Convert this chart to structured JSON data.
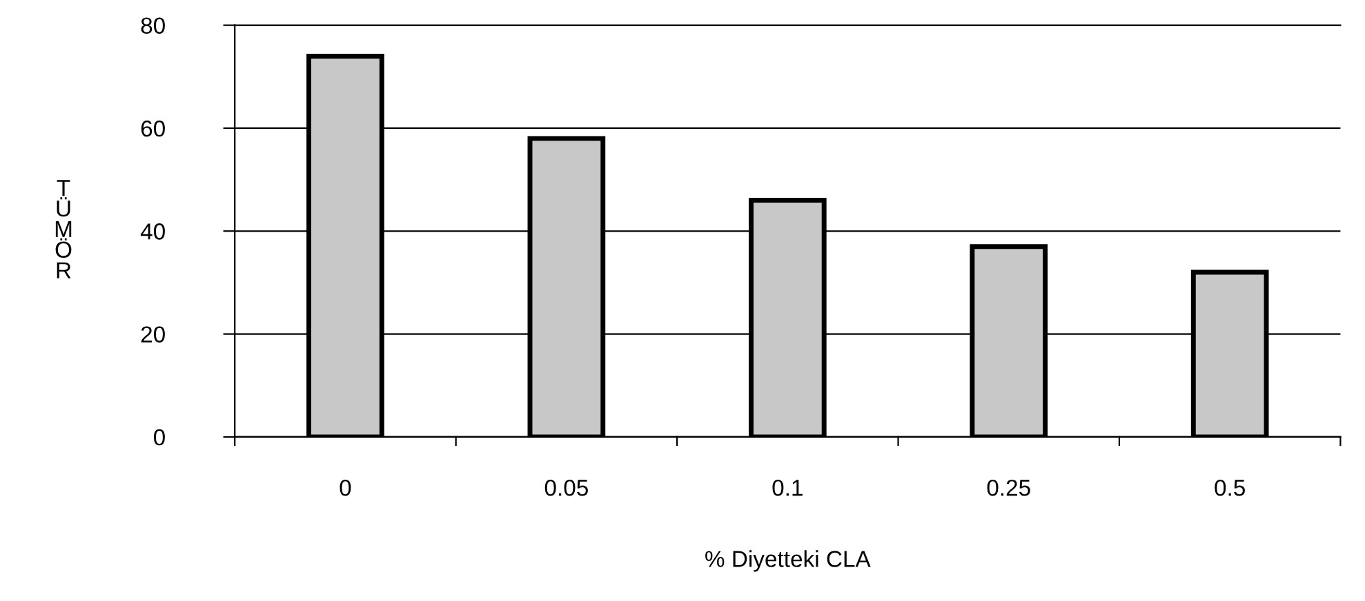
{
  "chart_data": {
    "type": "bar",
    "xlabel": "% Diyetteki CLA",
    "ylabel": "TÜMÖR",
    "categories": [
      "0",
      "0.05",
      "0.1",
      "0.25",
      "0.5"
    ],
    "values": [
      74,
      58,
      46,
      37,
      32
    ],
    "color": "#c8c8c8",
    "ylim": [
      0,
      80
    ],
    "yticks": [
      0,
      20,
      40,
      60,
      80
    ],
    "grid": "y"
  }
}
